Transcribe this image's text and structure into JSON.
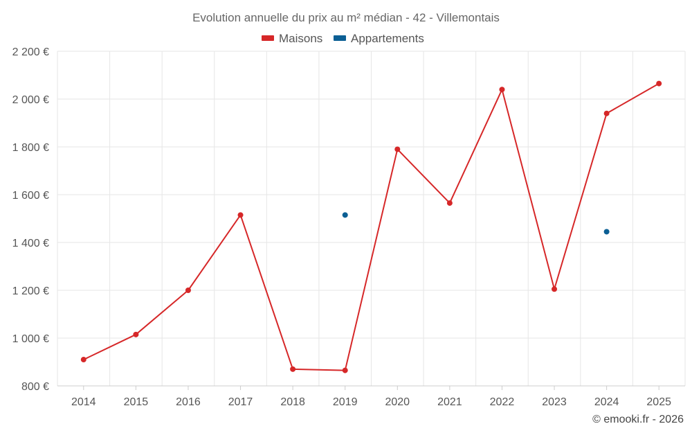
{
  "chart_data": {
    "type": "line",
    "title": "Evolution annuelle du prix au m² médian - 42 - Villemontais",
    "categories": [
      "2014",
      "2015",
      "2016",
      "2017",
      "2018",
      "2019",
      "2020",
      "2021",
      "2022",
      "2023",
      "2024",
      "2025"
    ],
    "series": [
      {
        "name": "Maisons",
        "color": "#d62728",
        "values": [
          910,
          1015,
          1200,
          1515,
          870,
          865,
          1790,
          1565,
          2040,
          1205,
          1940,
          2065
        ]
      },
      {
        "name": "Appartements",
        "color": "#0b5f94",
        "values": [
          null,
          null,
          null,
          null,
          null,
          1515,
          null,
          null,
          null,
          null,
          1445,
          null
        ]
      }
    ],
    "ylim": [
      800,
      2200
    ],
    "yticks": [
      800,
      1000,
      1200,
      1400,
      1600,
      1800,
      2000,
      2200
    ],
    "ytick_labels": [
      "800 €",
      "1 000 €",
      "1 200 €",
      "1 400 €",
      "1 600 €",
      "1 800 €",
      "2 000 €",
      "2 200 €"
    ],
    "xlabel": "",
    "ylabel": "",
    "grid": true,
    "legend_position": "top-center"
  },
  "credit": "© emooki.fr - 2026"
}
